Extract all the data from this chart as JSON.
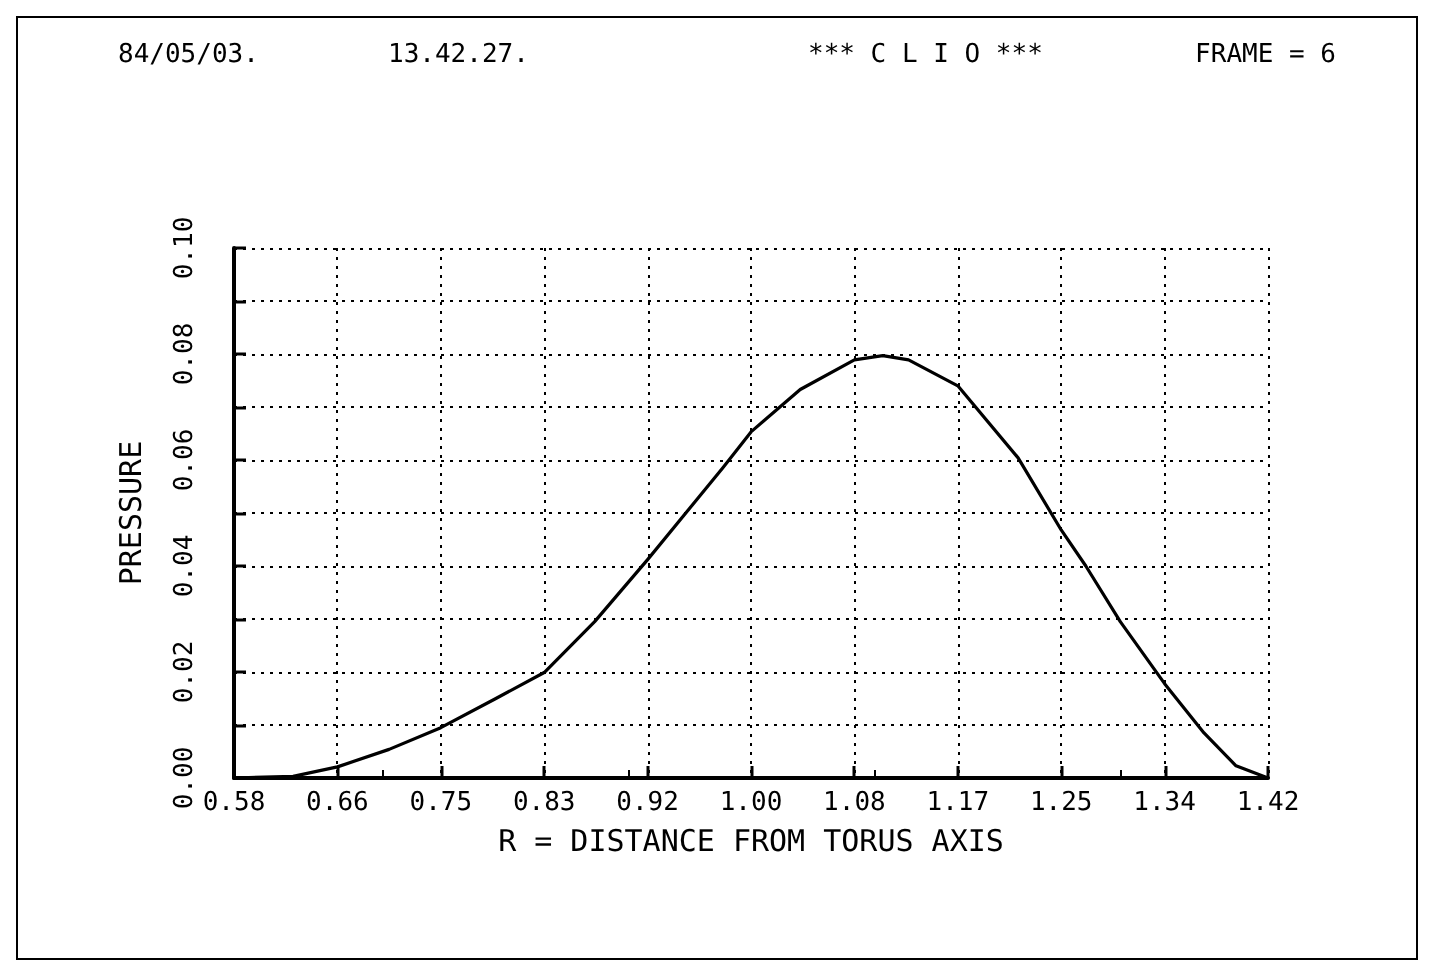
{
  "chart_data": {
    "type": "line",
    "xlabel": "R = DISTANCE FROM TORUS AXIS",
    "ylabel": "PRESSURE",
    "annotations": [
      "84/05/03.",
      "13.42.27.",
      "*** C L I O ***",
      "FRAME = 6"
    ],
    "series": [
      {
        "color": "#000000",
        "x": [
          0.58,
          0.628,
          0.664,
          0.706,
          0.748,
          0.792,
          0.832,
          0.873,
          0.916,
          0.977,
          1.0,
          1.04,
          1.084,
          1.107,
          1.128,
          1.168,
          1.217,
          1.252,
          1.272,
          1.3,
          1.336,
          1.368,
          1.394,
          1.42
        ],
        "values": [
          0,
          0.0003,
          0.0021,
          0.0054,
          0.0095,
          0.0149,
          0.0199,
          0.0295,
          0.0412,
          0.0585,
          0.0653,
          0.0733,
          0.0789,
          0.0797,
          0.0789,
          0.074,
          0.0604,
          0.0468,
          0.04,
          0.0295,
          0.0178,
          0.0085,
          0.0023,
          0
        ]
      }
    ],
    "xlim": [
      0.58,
      1.42
    ],
    "xticks": [
      0.58,
      {
        "value": 0.664,
        "label": "0.66"
      },
      {
        "value": 0.748,
        "label": "0.75"
      },
      {
        "value": 0.832,
        "label": "0.83"
      },
      {
        "value": 0.916,
        "label": "0.92"
      },
      {
        "value": 1.0,
        "label": "1.00"
      },
      {
        "value": 1.084,
        "label": "1.08"
      },
      {
        "value": 1.168,
        "label": "1.17"
      },
      {
        "value": 1.252,
        "label": "1.25"
      },
      {
        "value": 1.336,
        "label": "1.34"
      },
      1.42
    ],
    "ylim": [
      0,
      0.1
    ],
    "yticks": [
      {
        "value": 0,
        "label": "0.00"
      },
      {
        "value": 0.01,
        "label": null
      },
      {
        "value": 0.02,
        "label": "0.02"
      },
      {
        "value": 0.03,
        "label": null
      },
      {
        "value": 0.04,
        "label": "0.04"
      },
      {
        "value": 0.05,
        "label": null
      },
      {
        "value": 0.06,
        "label": "0.06"
      },
      {
        "value": 0.07,
        "label": null
      },
      {
        "value": 0.08,
        "label": "0.08"
      },
      {
        "value": 0.09,
        "label": null
      },
      {
        "value": 0.1,
        "label": "0.10"
      }
    ],
    "grid": true,
    "marker": "none",
    "line_style": "solid"
  }
}
